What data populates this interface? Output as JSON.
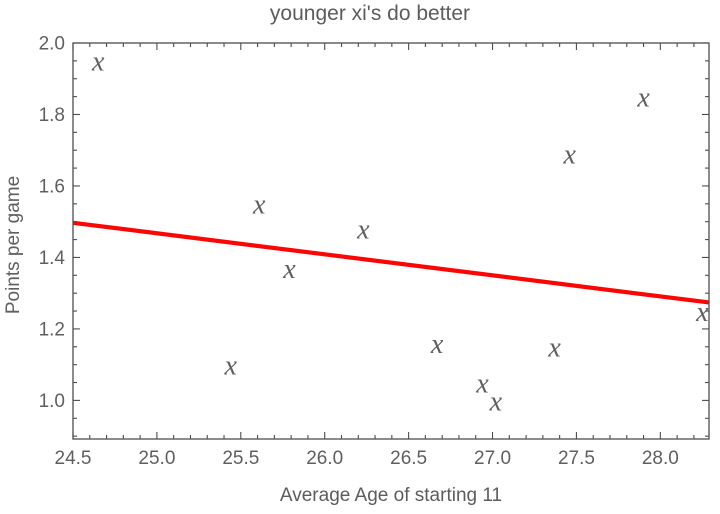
{
  "chart_data": {
    "type": "scatter",
    "title": "younger xi's do better",
    "xlabel": "Average Age of starting 11",
    "ylabel": "Points per game",
    "xlim": [
      24.5,
      28.29
    ],
    "ylim": [
      0.892,
      2.0
    ],
    "grid": false,
    "legend": "none",
    "x_major_ticks": {
      "values": [
        24.5,
        25.0,
        25.5,
        26.0,
        26.5,
        27.0,
        27.5,
        28.0
      ],
      "labels": [
        "24.5",
        "25.0",
        "25.5",
        "26.0",
        "26.5",
        "27.0",
        "27.5",
        "28.0"
      ]
    },
    "x_minor_step": 0.1,
    "y_major_ticks": {
      "values": [
        1.0,
        1.2,
        1.4,
        1.6,
        1.8,
        2.0
      ],
      "labels": [
        "1.0",
        "1.2",
        "1.4",
        "1.6",
        "1.8",
        "2.0"
      ]
    },
    "y_minor_step": 0.05,
    "marker": "x",
    "points": [
      [
        24.65,
        1.94
      ],
      [
        25.44,
        1.09
      ],
      [
        25.61,
        1.54
      ],
      [
        25.79,
        1.36
      ],
      [
        26.23,
        1.47
      ],
      [
        26.67,
        1.15
      ],
      [
        26.94,
        1.04
      ],
      [
        27.02,
        0.99
      ],
      [
        27.37,
        1.14
      ],
      [
        27.46,
        1.68
      ],
      [
        27.9,
        1.84
      ],
      [
        28.25,
        1.24
      ]
    ],
    "trend_line": {
      "start": [
        24.5,
        1.497
      ],
      "end": [
        28.29,
        1.274
      ]
    },
    "colors": {
      "marker": "#1414e8",
      "trend_line": "#fb0505",
      "frame": "#4d4d4d",
      "text": "#5f5f5f"
    }
  }
}
